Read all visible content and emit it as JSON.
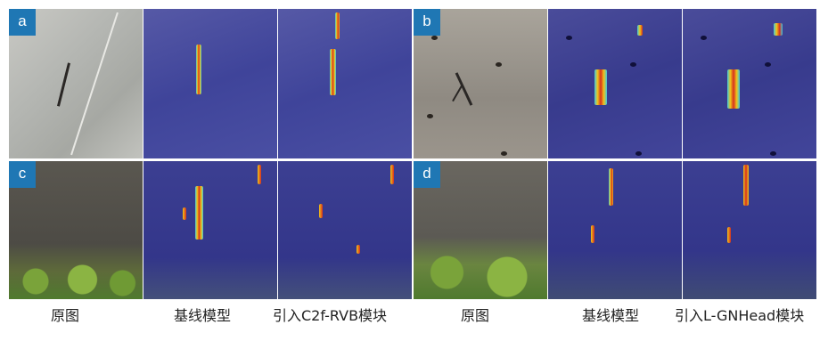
{
  "figure": {
    "panels": [
      {
        "id": "a",
        "label": "a"
      },
      {
        "id": "b",
        "label": "b"
      },
      {
        "id": "c",
        "label": "c"
      },
      {
        "id": "d",
        "label": "d"
      }
    ],
    "captions": {
      "left": [
        "原图",
        "基线模型",
        "引入C2f-RVB模块"
      ],
      "right": [
        "原图",
        "基线模型",
        "引入L-GNHead模块"
      ]
    },
    "colors": {
      "label_bg": "#1f77b4",
      "heatmap_bg": "#3a3f9c",
      "heat_hot": "#d7301f",
      "heat_warm": "#f0c419",
      "heat_cool": "#3ec7e0"
    }
  }
}
